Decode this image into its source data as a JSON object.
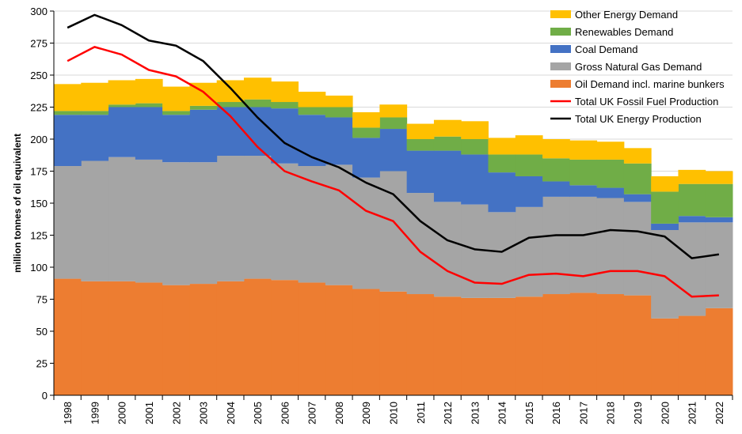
{
  "chart_data": {
    "type": "area",
    "stacked": true,
    "ylabel": "million tonnes of oil equivalent",
    "xlabel": "",
    "ylim": [
      0,
      300
    ],
    "yticks": [
      0,
      25,
      50,
      75,
      100,
      125,
      150,
      175,
      200,
      225,
      250,
      275,
      300
    ],
    "grid": true,
    "legend": "top-right",
    "categories": [
      "1998",
      "1999",
      "2000",
      "2001",
      "2002",
      "2003",
      "2004",
      "2005",
      "2006",
      "2007",
      "2008",
      "2009",
      "2010",
      "2011",
      "2012",
      "2013",
      "2014",
      "2015",
      "2016",
      "2017",
      "2018",
      "2019",
      "2020",
      "2021",
      "2022"
    ],
    "stack_series": [
      {
        "name": "Oil Demand incl. marine bunkers",
        "color": "#ED7D31",
        "values": [
          91,
          89,
          89,
          88,
          86,
          87,
          89,
          91,
          90,
          88,
          86,
          83,
          81,
          79,
          77,
          76,
          76,
          77,
          79,
          80,
          79,
          78,
          60,
          62,
          68
        ]
      },
      {
        "name": "Gross Natural Gas Demand",
        "color": "#A5A5A5",
        "values": [
          88,
          94,
          97,
          96,
          96,
          95,
          98,
          96,
          91,
          91,
          94,
          87,
          94,
          79,
          74,
          73,
          67,
          70,
          76,
          75,
          75,
          73,
          69,
          73,
          67
        ]
      },
      {
        "name": "Coal Demand",
        "color": "#4472C4",
        "values": [
          40,
          36,
          39,
          41,
          37,
          41,
          38,
          38,
          43,
          40,
          37,
          31,
          33,
          33,
          40,
          39,
          31,
          24,
          12,
          9,
          8,
          6,
          5,
          5,
          4
        ]
      },
      {
        "name": "Renewables Demand",
        "color": "#70AD47",
        "values": [
          3,
          3,
          2,
          3,
          3,
          3,
          4,
          6,
          5,
          6,
          8,
          8,
          9,
          9,
          11,
          12,
          14,
          17,
          18,
          20,
          22,
          24,
          25,
          25,
          26
        ]
      },
      {
        "name": "Other Energy Demand",
        "color": "#FFC000",
        "values": [
          21,
          22,
          19,
          19,
          19,
          18,
          17,
          17,
          16,
          12,
          9,
          12,
          10,
          12,
          13,
          14,
          13,
          15,
          15,
          15,
          14,
          12,
          12,
          11,
          10
        ]
      }
    ],
    "line_series": [
      {
        "name": "Total UK Fossil Fuel Production",
        "color": "#FF0000",
        "values": [
          261,
          272,
          266,
          254,
          249,
          237,
          218,
          194,
          175,
          167,
          160,
          144,
          136,
          112,
          97,
          88,
          87,
          94,
          95,
          93,
          97,
          97,
          93,
          77,
          78
        ]
      },
      {
        "name": "Total UK Energy Production",
        "color": "#000000",
        "values": [
          287,
          297,
          289,
          277,
          273,
          261,
          240,
          217,
          197,
          186,
          178,
          166,
          157,
          136,
          121,
          114,
          112,
          123,
          125,
          125,
          129,
          128,
          124,
          107,
          110
        ]
      }
    ],
    "legend_order": [
      "Other Energy Demand",
      "Renewables Demand",
      "Coal Demand",
      "Gross Natural Gas Demand",
      "Oil Demand incl. marine bunkers",
      "Total UK Fossil Fuel Production",
      "Total UK Energy Production"
    ]
  }
}
